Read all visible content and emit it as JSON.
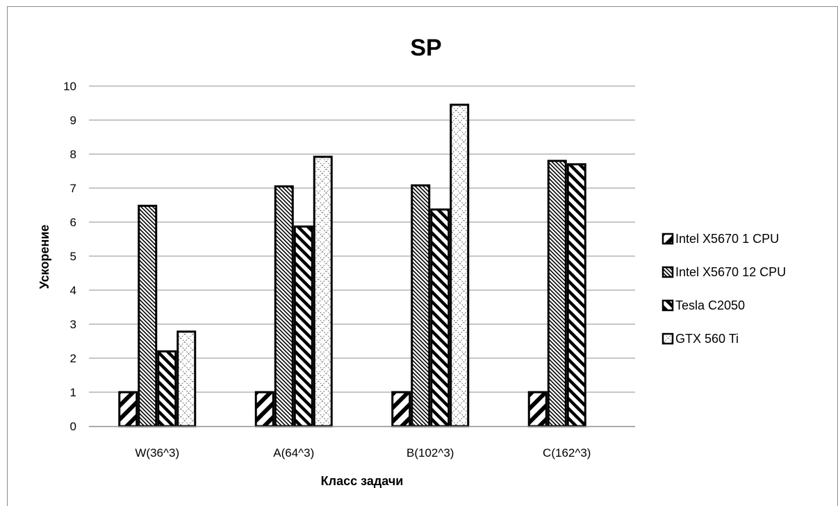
{
  "chart_data": {
    "type": "bar",
    "title": "SP",
    "xlabel": "Класс задачи",
    "ylabel": "Ускорение",
    "ylim": [
      0,
      10
    ],
    "yticks": [
      "0",
      "1",
      "2",
      "3",
      "4",
      "5",
      "6",
      "7",
      "8",
      "9",
      "10"
    ],
    "grid": true,
    "legend_position": "right",
    "categories": [
      "W(36^3)",
      "A(64^3)",
      "B(102^3)",
      "C(162^3)"
    ],
    "series": [
      {
        "name": "Intel X5670 1 CPU",
        "pattern": "wide-diagonal-hatch",
        "values": [
          1,
          1,
          1,
          1
        ]
      },
      {
        "name": "Intel X5670 12 CPU",
        "pattern": "dense-diagonal-hatch",
        "values": [
          6.48,
          7.05,
          7.08,
          7.8
        ]
      },
      {
        "name": "Tesla C2050",
        "pattern": "thick-back-diagonal-hatch",
        "values": [
          2.2,
          5.87,
          6.37,
          7.7
        ]
      },
      {
        "name": "GTX 560 Ti",
        "pattern": "light-diagonal-crosshatch",
        "values": [
          2.78,
          7.92,
          9.45,
          null
        ]
      }
    ]
  }
}
